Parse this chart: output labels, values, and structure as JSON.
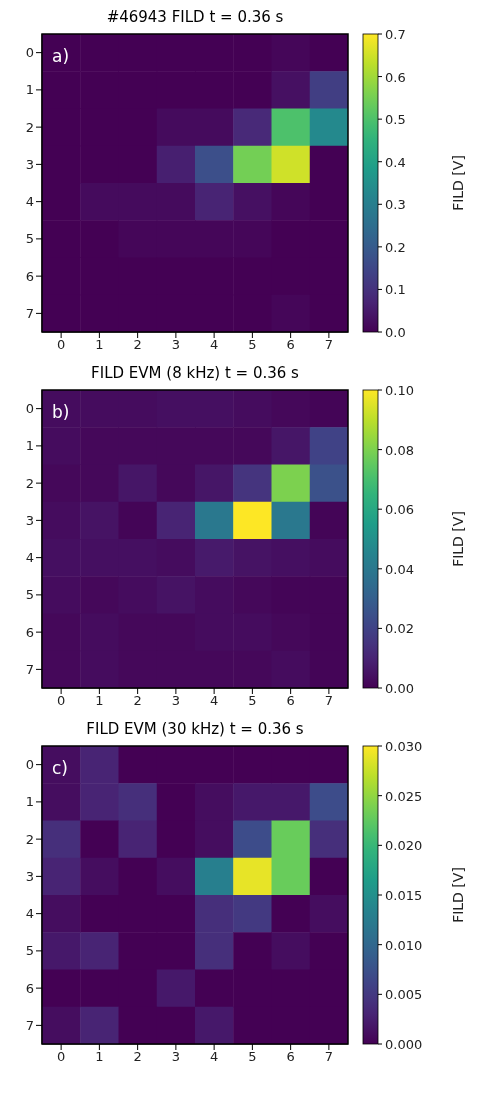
{
  "chart_data": [
    {
      "type": "heatmap",
      "title": "#46943 FILD t = 0.36 s",
      "clabel": "FILD [V]",
      "annotations": [
        "a)"
      ],
      "categories": [
        "0",
        "1",
        "2",
        "3",
        "4",
        "5",
        "6",
        "7"
      ],
      "y_categories": [
        "0",
        "1",
        "2",
        "3",
        "4",
        "5",
        "6",
        "7"
      ],
      "clim": [
        0,
        0.7
      ],
      "cticks": [
        {
          "value": 0,
          "label": "0.0"
        },
        0.1,
        0.2,
        0.3,
        0.4,
        0.5,
        0.6,
        0.7
      ],
      "cells": [
        [
          0,
          0,
          0,
          0,
          0,
          0,
          0.01,
          0
        ],
        [
          0,
          0,
          0,
          0,
          0,
          0,
          0.03,
          0.13
        ],
        [
          0,
          0,
          0,
          0.02,
          0.02,
          0.08,
          0.5,
          0.33
        ],
        [
          0,
          0,
          0,
          0.06,
          0.17,
          0.55,
          0.65,
          0
        ],
        [
          0,
          0.02,
          0.02,
          0.02,
          0.07,
          0.03,
          0.01,
          0
        ],
        [
          0,
          0,
          0.01,
          0.01,
          0.01,
          0.01,
          0,
          0
        ],
        [
          0,
          0,
          0,
          0,
          0,
          0,
          0,
          0
        ],
        [
          0,
          0,
          0,
          0,
          0,
          0,
          0.01,
          0
        ]
      ]
    },
    {
      "type": "heatmap",
      "title": "FILD EVM (8 kHz) t = 0.36 s",
      "clabel": "FILD [V]",
      "annotations": [
        "b)"
      ],
      "categories": [
        "0",
        "1",
        "2",
        "3",
        "4",
        "5",
        "6",
        "7"
      ],
      "y_categories": [
        "0",
        "1",
        "2",
        "3",
        "4",
        "5",
        "6",
        "7"
      ],
      "clim": [
        0,
        0.1
      ],
      "cticks": [
        {
          "value": 0,
          "label": "0.00"
        },
        {
          "value": 0.02,
          "label": "0.02"
        },
        {
          "value": 0.04,
          "label": "0.04"
        },
        {
          "value": 0.06,
          "label": "0.06"
        },
        {
          "value": 0.08,
          "label": "0.08"
        },
        {
          "value": 0.1,
          "label": "0.10"
        }
      ],
      "cells": [
        [
          0.003,
          0.003,
          0.003,
          0.004,
          0.004,
          0.003,
          0.002,
          0.001
        ],
        [
          0.003,
          0.002,
          0.002,
          0.002,
          0.002,
          0.002,
          0.006,
          0.02
        ],
        [
          0.002,
          0.002,
          0.006,
          0.002,
          0.006,
          0.015,
          0.08,
          0.025
        ],
        [
          0.003,
          0.005,
          0.001,
          0.01,
          0.04,
          0.1,
          0.04,
          0.001
        ],
        [
          0.004,
          0.004,
          0.004,
          0.003,
          0.007,
          0.005,
          0.004,
          0.003
        ],
        [
          0.003,
          0.002,
          0.003,
          0.005,
          0.003,
          0.002,
          0.001,
          0.001
        ],
        [
          0.002,
          0.003,
          0.002,
          0.002,
          0.003,
          0.003,
          0.002,
          0.001
        ],
        [
          0.002,
          0.003,
          0.002,
          0.002,
          0.002,
          0.002,
          0.003,
          0.001
        ]
      ]
    },
    {
      "type": "heatmap",
      "title": "FILD EVM (30 kHz) t = 0.36 s",
      "clabel": "FILD [V]",
      "annotations": [
        "c)"
      ],
      "categories": [
        "0",
        "1",
        "2",
        "3",
        "4",
        "5",
        "6",
        "7"
      ],
      "y_categories": [
        "0",
        "1",
        "2",
        "3",
        "4",
        "5",
        "6",
        "7"
      ],
      "clim": [
        0,
        0.03
      ],
      "cticks": [
        {
          "value": 0,
          "label": "0.000"
        },
        {
          "value": 0.005,
          "label": "0.005"
        },
        {
          "value": 0.01,
          "label": "0.010"
        },
        {
          "value": 0.015,
          "label": "0.015"
        },
        {
          "value": 0.02,
          "label": "0.020"
        },
        {
          "value": 0.025,
          "label": "0.025"
        },
        {
          "value": 0.03,
          "label": "0.030"
        }
      ],
      "cells": [
        [
          0.001,
          0.003,
          0,
          0,
          0,
          0,
          0,
          0
        ],
        [
          0.001,
          0.003,
          0.004,
          0,
          0.001,
          0.002,
          0.002,
          0.007
        ],
        [
          0.004,
          0,
          0.003,
          0,
          0.001,
          0.007,
          0.023,
          0.004
        ],
        [
          0.003,
          0.001,
          0,
          0.001,
          0.013,
          0.029,
          0.023,
          0
        ],
        [
          0.001,
          0,
          0,
          0,
          0.004,
          0.005,
          0,
          0.001
        ],
        [
          0.002,
          0.003,
          0,
          0,
          0.004,
          0,
          0.001,
          0
        ],
        [
          0,
          0,
          0,
          0.002,
          0,
          0,
          0,
          0
        ],
        [
          0.001,
          0.003,
          0,
          0,
          0.002,
          0,
          0,
          0
        ]
      ]
    }
  ]
}
